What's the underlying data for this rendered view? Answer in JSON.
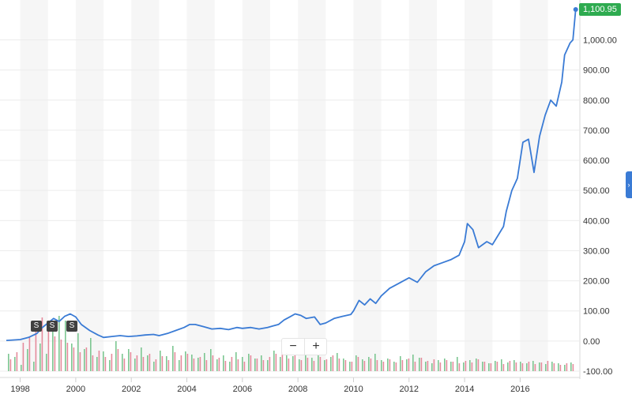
{
  "chart_data": {
    "type": "line",
    "title": "",
    "xlabel": "",
    "ylabel": "",
    "xlim": [
      1997.5,
      2018.15
    ],
    "ylim": [
      -100,
      1100.95
    ],
    "x_ticks": [
      "1998",
      "2000",
      "2002",
      "2004",
      "2006",
      "2008",
      "2010",
      "2012",
      "2014",
      "2016"
    ],
    "y_ticks": [
      "-100.00",
      "0.00",
      "100.00",
      "200.00",
      "300.00",
      "400.00",
      "500.00",
      "600.00",
      "700.00",
      "800.00",
      "900.00",
      "1,000.00"
    ],
    "last_price": "1,100.95",
    "grid": true,
    "series": [
      {
        "color": "#3a7bd5",
        "x": [
          1997.5,
          1998.0,
          1998.3,
          1998.6,
          1998.8,
          1999.0,
          1999.2,
          1999.4,
          1999.6,
          1999.8,
          2000.0,
          2000.2,
          2000.5,
          2000.8,
          2001.0,
          2001.3,
          2001.6,
          2001.9,
          2002.2,
          2002.5,
          2002.8,
          2003.0,
          2003.3,
          2003.6,
          2003.9,
          2004.1,
          2004.3,
          2004.6,
          2004.9,
          2005.2,
          2005.5,
          2005.8,
          2006.0,
          2006.3,
          2006.6,
          2006.9,
          2007.1,
          2007.3,
          2007.5,
          2007.7,
          2007.9,
          2008.1,
          2008.3,
          2008.6,
          2008.8,
          2009.0,
          2009.3,
          2009.6,
          2009.9,
          2010.0,
          2010.2,
          2010.4,
          2010.6,
          2010.8,
          2011.0,
          2011.3,
          2011.6,
          2011.8,
          2012.0,
          2012.3,
          2012.6,
          2012.9,
          2013.2,
          2013.5,
          2013.8,
          2014.0,
          2014.1,
          2014.3,
          2014.5,
          2014.8,
          2015.0,
          2015.2,
          2015.4,
          2015.5,
          2015.7,
          2015.9,
          2016.0,
          2016.1,
          2016.3,
          2016.5,
          2016.7,
          2016.9,
          2017.1,
          2017.3,
          2017.5,
          2017.6,
          2017.8,
          2017.9,
          2018.0
        ],
        "y": [
          2,
          5,
          12,
          25,
          45,
          60,
          75,
          65,
          82,
          90,
          80,
          55,
          35,
          20,
          12,
          15,
          18,
          15,
          17,
          20,
          22,
          18,
          25,
          35,
          45,
          55,
          55,
          48,
          40,
          42,
          38,
          45,
          42,
          45,
          40,
          45,
          50,
          55,
          70,
          80,
          90,
          85,
          75,
          80,
          55,
          60,
          75,
          82,
          88,
          100,
          135,
          120,
          140,
          125,
          150,
          175,
          190,
          200,
          210,
          195,
          230,
          250,
          260,
          270,
          285,
          330,
          390,
          370,
          310,
          330,
          320,
          350,
          380,
          430,
          500,
          540,
          600,
          660,
          670,
          560,
          680,
          750,
          800,
          780,
          860,
          950,
          990,
          1000,
          1100.95
        ]
      }
    ],
    "volume_up": [
      22,
      18,
      8,
      28,
      12,
      35,
      22,
      55,
      70,
      64,
      35,
      48,
      28,
      42,
      18,
      25,
      14,
      38,
      22,
      28,
      16,
      30,
      20,
      12,
      26,
      19,
      32,
      14,
      25,
      21,
      17,
      23,
      28,
      15,
      20,
      12,
      24,
      18,
      22,
      16,
      20,
      14,
      26,
      18,
      23,
      19,
      15,
      22,
      17,
      20,
      14,
      18,
      23,
      16,
      12,
      20,
      15,
      18,
      22,
      14,
      16,
      12,
      19,
      15,
      21,
      17,
      12,
      10,
      14,
      16,
      12,
      18,
      11,
      14,
      16,
      12,
      10,
      13,
      15,
      11,
      14,
      12,
      10,
      13,
      11,
      9,
      12,
      10,
      8,
      11
    ],
    "volume_down": [
      15,
      24,
      36,
      44,
      60,
      68,
      58,
      44,
      40,
      36,
      30,
      24,
      30,
      20,
      26,
      18,
      22,
      28,
      16,
      24,
      20,
      18,
      22,
      15,
      19,
      14,
      24,
      20,
      22,
      16,
      18,
      14,
      20,
      17,
      13,
      18,
      15,
      12,
      20,
      16,
      14,
      18,
      22,
      24,
      16,
      20,
      14,
      17,
      13,
      18,
      15,
      20,
      16,
      14,
      12,
      18,
      13,
      16,
      14,
      12,
      15,
      11,
      14,
      16,
      12,
      17,
      13,
      15,
      11,
      14,
      12,
      10,
      13,
      11,
      15,
      12,
      10,
      12,
      9,
      13,
      11,
      10,
      12,
      9,
      11,
      13,
      10,
      8,
      10,
      9
    ]
  },
  "split_markers": [
    "S",
    "S",
    "S"
  ],
  "zoom": {
    "minus": "−",
    "plus": "+"
  },
  "side_tab": "›"
}
